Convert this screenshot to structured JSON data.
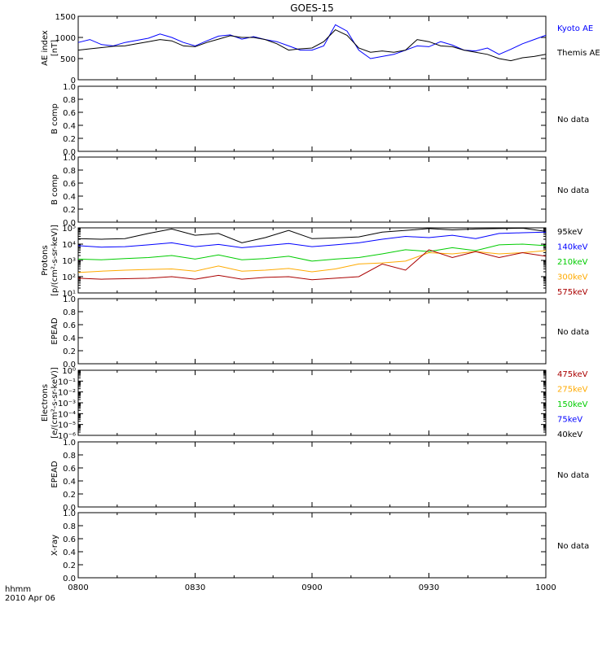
{
  "title": "GOES-15",
  "x_axis": {
    "ticks": [
      "0800",
      "0830",
      "0900",
      "0930",
      "1000"
    ],
    "label_line1": "hhmm",
    "label_line2": "2010 Apr 06"
  },
  "colors": {
    "black": "#000000",
    "blue": "#0000ff",
    "green": "#00cc00",
    "orange": "#ffaa00",
    "darkred": "#aa0000"
  },
  "chart_data": [
    {
      "type": "line",
      "panel": "ae",
      "ylabel_lines": [
        "AE index",
        "[nT]"
      ],
      "ylim": [
        0,
        1500
      ],
      "ytick_labels": [
        "0",
        "500",
        "1000",
        "1500"
      ],
      "ytick_values": [
        0,
        500,
        1000,
        1500
      ],
      "x_units": "minutes after 0800",
      "series": [
        {
          "name": "Kyoto AE",
          "color": "blue",
          "x": [
            0,
            3,
            6,
            9,
            12,
            15,
            18,
            21,
            24,
            27,
            30,
            33,
            36,
            39,
            42,
            45,
            48,
            51,
            54,
            57,
            60,
            63,
            66,
            69,
            72,
            75,
            78,
            81,
            84,
            87,
            90,
            93,
            96,
            99,
            102,
            105,
            108,
            111,
            114,
            117,
            120
          ],
          "y": [
            880,
            950,
            830,
            800,
            880,
            930,
            980,
            1080,
            1000,
            880,
            800,
            920,
            1030,
            1060,
            960,
            1020,
            950,
            900,
            800,
            700,
            700,
            800,
            1300,
            1150,
            700,
            500,
            550,
            600,
            700,
            800,
            780,
            900,
            820,
            700,
            680,
            750,
            600,
            720,
            850,
            950,
            1050
          ]
        },
        {
          "name": "Themis AE",
          "color": "black",
          "x": [
            0,
            3,
            6,
            9,
            12,
            15,
            18,
            21,
            24,
            27,
            30,
            33,
            36,
            39,
            42,
            45,
            48,
            51,
            54,
            57,
            60,
            63,
            66,
            69,
            72,
            75,
            78,
            81,
            84,
            87,
            90,
            93,
            96,
            99,
            102,
            105,
            108,
            111,
            114,
            117,
            120
          ],
          "y": [
            700,
            730,
            760,
            790,
            800,
            850,
            900,
            950,
            920,
            800,
            780,
            880,
            960,
            1040,
            1000,
            1000,
            950,
            850,
            700,
            730,
            750,
            900,
            1180,
            1050,
            750,
            650,
            680,
            650,
            700,
            950,
            900,
            800,
            780,
            700,
            650,
            600,
            500,
            450,
            520,
            550,
            600
          ]
        }
      ]
    },
    {
      "type": "line",
      "panel": "bcomp1",
      "ylabel_lines": [
        "B comp"
      ],
      "ylim": [
        0,
        1
      ],
      "ytick_labels": [
        "0.0",
        "0.2",
        "0.4",
        "0.6",
        "0.8",
        "1.0"
      ],
      "ytick_values": [
        0,
        0.2,
        0.4,
        0.6,
        0.8,
        1.0
      ],
      "series": [],
      "note": "No data"
    },
    {
      "type": "line",
      "panel": "bcomp2",
      "ylabel_lines": [
        "B comp"
      ],
      "ylim": [
        0,
        1
      ],
      "ytick_labels": [
        "0.0",
        "0.2",
        "0.4",
        "0.6",
        "0.8",
        "1.0"
      ],
      "ytick_values": [
        0,
        0.2,
        0.4,
        0.6,
        0.8,
        1.0
      ],
      "series": [],
      "note": "No data"
    },
    {
      "type": "line",
      "panel": "protons",
      "log": true,
      "ylabel_lines": [
        "Protons",
        "[p/(cm²-s-sr-keV)]"
      ],
      "ylim": [
        10,
        100000
      ],
      "ytick_labels": [
        "10¹",
        "10²",
        "10³",
        "10⁴",
        "10⁵"
      ],
      "ytick_values": [
        10,
        100,
        1000,
        10000,
        100000
      ],
      "x_units": "minutes after 0800",
      "series": [
        {
          "name": "95keV",
          "color": "black",
          "x": [
            0,
            6,
            12,
            18,
            24,
            30,
            36,
            42,
            48,
            54,
            60,
            66,
            72,
            78,
            84,
            90,
            96,
            102,
            108,
            114,
            120
          ],
          "y": [
            22000,
            20000,
            22000,
            45000,
            85000,
            35000,
            45000,
            12000,
            25000,
            70000,
            22000,
            24000,
            28000,
            55000,
            70000,
            90000,
            75000,
            85000,
            90000,
            95000,
            60000
          ]
        },
        {
          "name": "140keV",
          "color": "blue",
          "x": [
            0,
            6,
            12,
            18,
            24,
            30,
            36,
            42,
            48,
            54,
            60,
            66,
            72,
            78,
            84,
            90,
            96,
            102,
            108,
            114,
            120
          ],
          "y": [
            8000,
            6500,
            7000,
            9000,
            12000,
            7000,
            9500,
            6000,
            8000,
            11000,
            7000,
            9000,
            12000,
            20000,
            30000,
            25000,
            35000,
            22000,
            45000,
            50000,
            55000
          ]
        },
        {
          "name": "210keV",
          "color": "green",
          "x": [
            0,
            6,
            12,
            18,
            24,
            30,
            36,
            42,
            48,
            54,
            60,
            66,
            72,
            78,
            84,
            90,
            96,
            102,
            108,
            114,
            120
          ],
          "y": [
            1200,
            1100,
            1300,
            1500,
            2000,
            1200,
            2200,
            1100,
            1300,
            1800,
            900,
            1200,
            1500,
            2500,
            4500,
            3500,
            6000,
            4000,
            9000,
            10000,
            8000
          ]
        },
        {
          "name": "300keV",
          "color": "orange",
          "x": [
            0,
            6,
            12,
            18,
            24,
            30,
            36,
            42,
            48,
            54,
            60,
            66,
            72,
            78,
            84,
            90,
            96,
            102,
            108,
            114,
            120
          ],
          "y": [
            180,
            220,
            250,
            280,
            300,
            220,
            450,
            220,
            250,
            320,
            200,
            300,
            600,
            700,
            900,
            3000,
            2500,
            3500,
            2500,
            3000,
            4000
          ]
        },
        {
          "name": "575keV",
          "color": "darkred",
          "x": [
            0,
            6,
            12,
            18,
            24,
            30,
            36,
            42,
            48,
            54,
            60,
            66,
            72,
            78,
            84,
            90,
            96,
            102,
            108,
            114,
            120
          ],
          "y": [
            80,
            70,
            75,
            80,
            100,
            70,
            120,
            70,
            90,
            100,
            65,
            80,
            100,
            600,
            250,
            4500,
            1500,
            3500,
            1500,
            3000,
            1800
          ]
        }
      ]
    },
    {
      "type": "line",
      "panel": "epead1",
      "ylabel_lines": [
        "EPEAD"
      ],
      "ylim": [
        0,
        1
      ],
      "ytick_labels": [
        "0.0",
        "0.2",
        "0.4",
        "0.6",
        "0.8",
        "1.0"
      ],
      "ytick_values": [
        0,
        0.2,
        0.4,
        0.6,
        0.8,
        1.0
      ],
      "series": [],
      "note": "No data"
    },
    {
      "type": "line",
      "panel": "electrons",
      "log": true,
      "ylabel_lines": [
        "Electrons",
        "[e/(cm²-s-sr-keV)]"
      ],
      "ylim": [
        1e-06,
        1
      ],
      "ytick_labels": [
        "10⁻⁶",
        "10⁻⁵",
        "10⁻⁴",
        "10⁻³",
        "10⁻²",
        "10⁻¹",
        "10⁰"
      ],
      "ytick_values": [
        1e-06,
        1e-05,
        0.0001,
        0.001,
        0.01,
        0.1,
        1
      ],
      "series": [
        {
          "name": "475keV",
          "color": "darkred",
          "values": []
        },
        {
          "name": "275keV",
          "color": "orange",
          "values": []
        },
        {
          "name": "150keV",
          "color": "green",
          "values": []
        },
        {
          "name": "75keV",
          "color": "blue",
          "values": []
        },
        {
          "name": "40keV",
          "color": "black",
          "values": []
        }
      ]
    },
    {
      "type": "line",
      "panel": "epead2",
      "ylabel_lines": [
        "EPEAD"
      ],
      "ylim": [
        0,
        1
      ],
      "ytick_labels": [
        "0.0",
        "0.2",
        "0.4",
        "0.6",
        "0.8",
        "1.0"
      ],
      "ytick_values": [
        0,
        0.2,
        0.4,
        0.6,
        0.8,
        1.0
      ],
      "series": [],
      "note": "No data"
    },
    {
      "type": "line",
      "panel": "xray",
      "ylabel_lines": [
        "X-ray"
      ],
      "ylim": [
        0,
        1
      ],
      "ytick_labels": [
        "0.0",
        "0.2",
        "0.4",
        "0.6",
        "0.8",
        "1.0"
      ],
      "ytick_values": [
        0,
        0.2,
        0.4,
        0.6,
        0.8,
        1.0
      ],
      "series": [],
      "note": "No data"
    }
  ]
}
